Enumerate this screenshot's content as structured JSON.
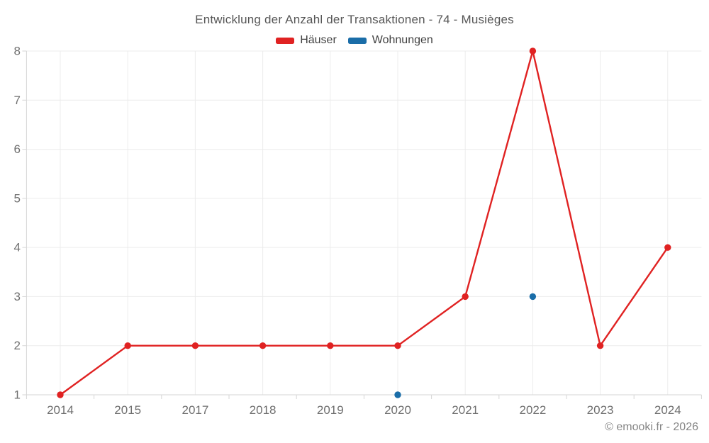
{
  "chart": {
    "title": "Entwicklung der Anzahl der Transaktionen - 74 - Musièges",
    "footer": "© emooki.fr - 2026",
    "colors": {
      "grid": "#ececec",
      "axis": "#d6d6d6",
      "tick_label": "#6f6f6f"
    }
  },
  "chart_data": {
    "type": "line",
    "title": "Entwicklung der Anzahl der Transaktionen - 74 - Musièges",
    "categories": [
      "2014",
      "2015",
      "2017",
      "2018",
      "2019",
      "2020",
      "2021",
      "2022",
      "2023",
      "2024"
    ],
    "series": [
      {
        "name": "Häuser",
        "color": "#e02222",
        "connected": true,
        "values": [
          1,
          2,
          2,
          2,
          2,
          2,
          3,
          8,
          2,
          4
        ]
      },
      {
        "name": "Wohnungen",
        "color": "#1a6da8",
        "connected": false,
        "values": [
          null,
          null,
          null,
          null,
          null,
          1,
          null,
          3,
          null,
          null
        ]
      }
    ],
    "ylim": [
      1,
      8
    ],
    "yticks": [
      1,
      2,
      3,
      4,
      5,
      6,
      7,
      8
    ],
    "grid": true,
    "legend_position": "top",
    "xlabel": "",
    "ylabel": ""
  }
}
